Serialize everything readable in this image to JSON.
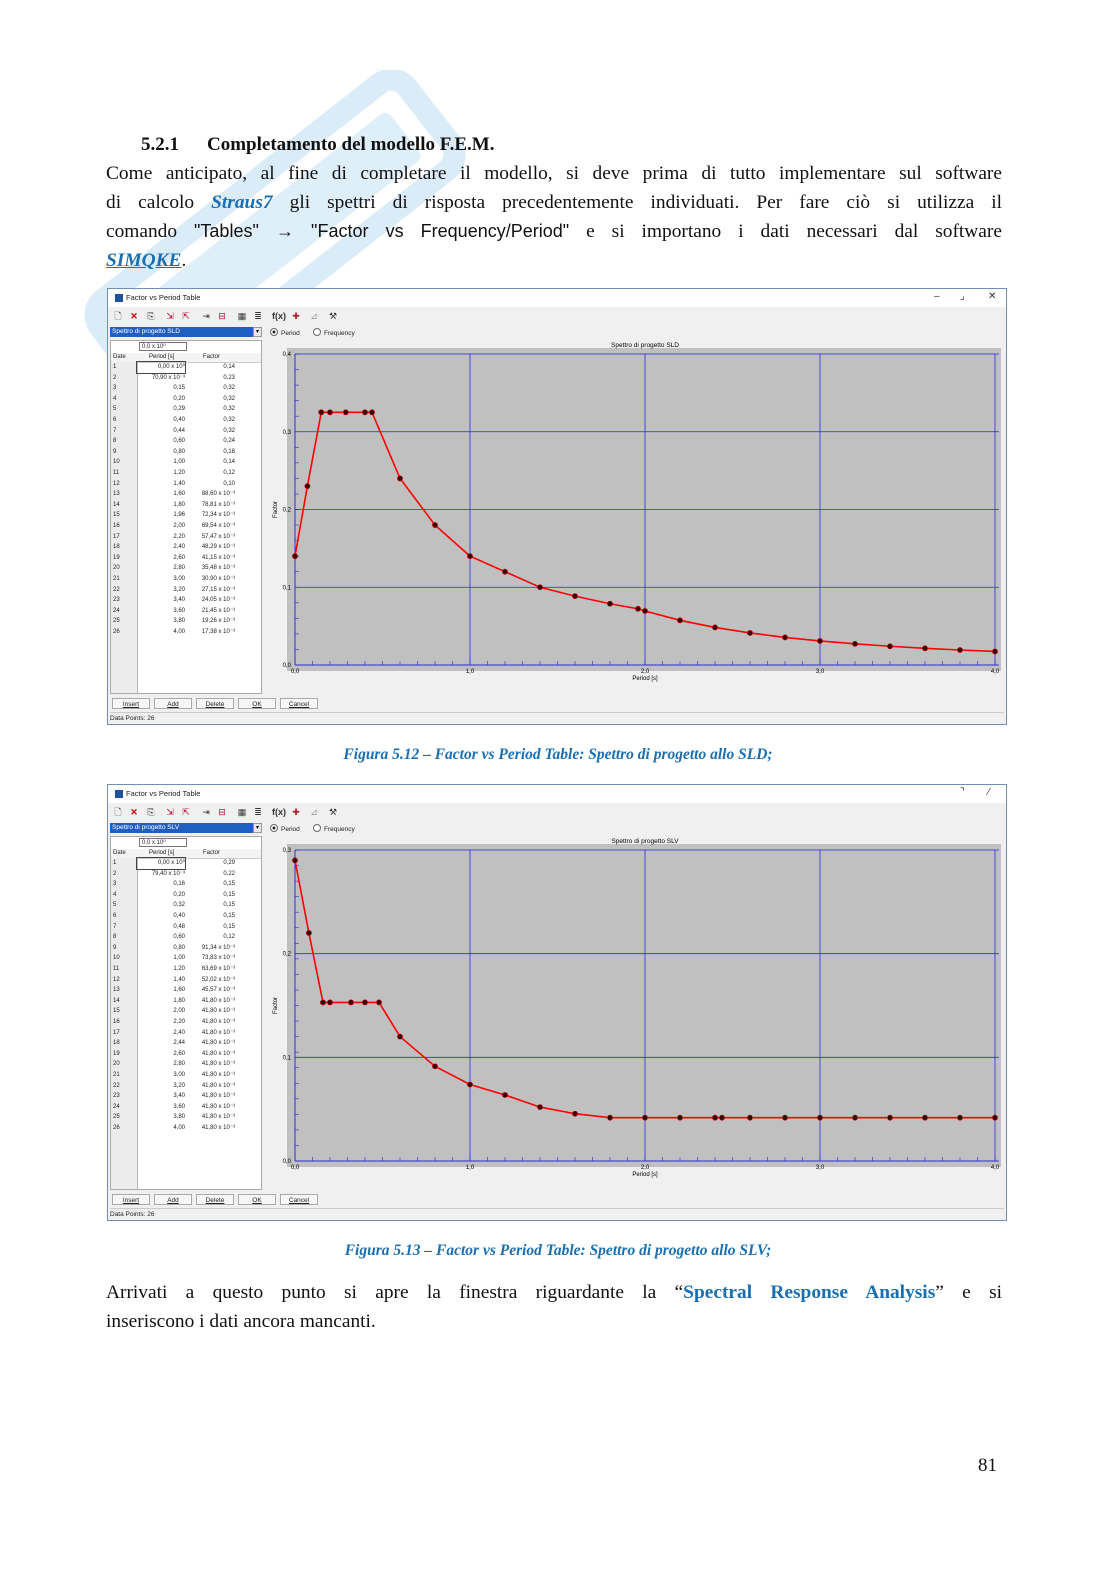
{
  "section": {
    "number": "5.2.1",
    "title": "Completamento del modello F.E.M."
  },
  "intro": {
    "l1": "Come anticipato, al fine di completare il modello, si deve prima di tutto implementare sul software",
    "l2a": "di calcolo ",
    "l2b": "Straus7",
    "l2c": " gli spettri di risposta precedentemente individuati. Per fare ciò si utilizza il",
    "l3a": "comando ",
    "l3b": "\"Tables\" → \"Factor vs Frequency/Period\"",
    "l3c": " e si importano i dati necessari dal software",
    "l4a": "SIMQKE",
    "l4b": "."
  },
  "outro": {
    "l1a": "Arrivati a questo punto si apre la finestra riguardante la “",
    "l1b": "Spectral Response Analysis",
    "l1c": "” e si",
    "l2": "inseriscono i dati ancora mancanti."
  },
  "page_number": "81",
  "windows": [
    {
      "title": "Factor vs Period Table",
      "selected_spectrum": "Spettro di progetto SLD",
      "radio_period": "Period",
      "radio_frequency": "Frequency",
      "input_value": "0,0 x 10⁰",
      "col_date": "Date",
      "col_period": "Period [s]",
      "col_factor": "Factor",
      "rows": [
        [
          "1",
          "0,00 x 10⁰",
          "0,14"
        ],
        [
          "2",
          "70,90 x 10⁻³",
          "0,23"
        ],
        [
          "3",
          "0,15",
          "0,32"
        ],
        [
          "4",
          "0,20",
          "0,32"
        ],
        [
          "5",
          "0,29",
          "0,32"
        ],
        [
          "6",
          "0,40",
          "0,32"
        ],
        [
          "7",
          "0,44",
          "0,32"
        ],
        [
          "8",
          "0,60",
          "0,24"
        ],
        [
          "9",
          "0,80",
          "0,18"
        ],
        [
          "10",
          "1,00",
          "0,14"
        ],
        [
          "11",
          "1,20",
          "0,12"
        ],
        [
          "12",
          "1,40",
          "0,10"
        ],
        [
          "13",
          "1,60",
          "88,60 x 10⁻³"
        ],
        [
          "14",
          "1,80",
          "78,81 x 10⁻³"
        ],
        [
          "15",
          "1,96",
          "72,34 x 10⁻³"
        ],
        [
          "16",
          "2,00",
          "69,54 x 10⁻³"
        ],
        [
          "17",
          "2,20",
          "57,47 x 10⁻³"
        ],
        [
          "18",
          "2,40",
          "48,29 x 10⁻³"
        ],
        [
          "19",
          "2,60",
          "41,15 x 10⁻³"
        ],
        [
          "20",
          "2,80",
          "35,48 x 10⁻³"
        ],
        [
          "21",
          "3,00",
          "30,90 x 10⁻³"
        ],
        [
          "22",
          "3,20",
          "27,15 x 10⁻³"
        ],
        [
          "23",
          "3,40",
          "24,05 x 10⁻³"
        ],
        [
          "24",
          "3,60",
          "21,45 x 10⁻³"
        ],
        [
          "25",
          "3,80",
          "19,26 x 10⁻³"
        ],
        [
          "26",
          "4,00",
          "17,38 x 10⁻³"
        ]
      ],
      "buttons": {
        "insert": "Insert",
        "add": "Add",
        "delete": "Delete",
        "ok": "OK",
        "cancel": "Cancel"
      },
      "status": "Data Points: 26"
    },
    {
      "title": "Factor vs Period Table",
      "selected_spectrum": "Spettro di progetto SLV",
      "radio_period": "Period",
      "radio_frequency": "Frequency",
      "input_value": "0,0 x 10⁰",
      "col_date": "Date",
      "col_period": "Period [s]",
      "col_factor": "Factor",
      "rows": [
        [
          "1",
          "0,00 x 10⁰",
          "0,29"
        ],
        [
          "2",
          "79,40 x 10⁻³",
          "0,22"
        ],
        [
          "3",
          "0,16",
          "0,15"
        ],
        [
          "4",
          "0,20",
          "0,15"
        ],
        [
          "5",
          "0,32",
          "0,15"
        ],
        [
          "6",
          "0,40",
          "0,15"
        ],
        [
          "7",
          "0,48",
          "0,15"
        ],
        [
          "8",
          "0,60",
          "0,12"
        ],
        [
          "9",
          "0,80",
          "91,34 x 10⁻³"
        ],
        [
          "10",
          "1,00",
          "73,83 x 10⁻³"
        ],
        [
          "11",
          "1,20",
          "63,69 x 10⁻³"
        ],
        [
          "12",
          "1,40",
          "52,02 x 10⁻³"
        ],
        [
          "13",
          "1,60",
          "45,57 x 10⁻³"
        ],
        [
          "14",
          "1,80",
          "41,80 x 10⁻³"
        ],
        [
          "15",
          "2,00",
          "41,80 x 10⁻³"
        ],
        [
          "16",
          "2,20",
          "41,80 x 10⁻³"
        ],
        [
          "17",
          "2,40",
          "41,80 x 10⁻³"
        ],
        [
          "18",
          "2,44",
          "41,80 x 10⁻³"
        ],
        [
          "19",
          "2,60",
          "41,80 x 10⁻³"
        ],
        [
          "20",
          "2,80",
          "41,80 x 10⁻³"
        ],
        [
          "21",
          "3,00",
          "41,80 x 10⁻³"
        ],
        [
          "22",
          "3,20",
          "41,80 x 10⁻³"
        ],
        [
          "23",
          "3,40",
          "41,80 x 10⁻³"
        ],
        [
          "24",
          "3,60",
          "41,80 x 10⁻³"
        ],
        [
          "25",
          "3,80",
          "41,80 x 10⁻³"
        ],
        [
          "26",
          "4,00",
          "41,80 x 10⁻³"
        ]
      ],
      "buttons": {
        "insert": "Insert",
        "add": "Add",
        "delete": "Delete",
        "ok": "OK",
        "cancel": "Cancel"
      },
      "status": "Data Points: 26"
    }
  ],
  "captions": [
    "Figura 5.12 – Factor vs Period Table: Spettro di progetto allo SLD;",
    "Figura 5.13 – Factor vs Period Table: Spettro di progetto allo SLV;"
  ],
  "chart_data": [
    {
      "type": "line",
      "title": "Spettro di progetto SLD",
      "xlabel": "Period [s]",
      "ylabel": "Factor",
      "xlim": [
        0,
        4
      ],
      "ylim": [
        0,
        0.4
      ],
      "xticks": [
        "0,0",
        "1,0",
        "2,0",
        "3,0",
        "4,0"
      ],
      "yticks": [
        "0,0",
        "0,1",
        "0,2",
        "0,3",
        "0,4"
      ],
      "grid": true,
      "line_color": "#ff0000",
      "x": [
        0,
        0.0709,
        0.15,
        0.2,
        0.29,
        0.4,
        0.44,
        0.6,
        0.8,
        1.0,
        1.2,
        1.4,
        1.6,
        1.8,
        1.96,
        2.0,
        2.2,
        2.4,
        2.6,
        2.8,
        3.0,
        3.2,
        3.4,
        3.6,
        3.8,
        4.0
      ],
      "y": [
        0.14,
        0.23,
        0.325,
        0.325,
        0.325,
        0.325,
        0.325,
        0.24,
        0.18,
        0.14,
        0.12,
        0.1,
        0.0886,
        0.0788,
        0.0723,
        0.0695,
        0.0575,
        0.0483,
        0.0412,
        0.0355,
        0.0309,
        0.0272,
        0.0241,
        0.0215,
        0.0193,
        0.0174
      ]
    },
    {
      "type": "line",
      "title": "Spettro di progetto SLV",
      "xlabel": "Period [s]",
      "ylabel": "Factor",
      "xlim": [
        0,
        4
      ],
      "ylim": [
        0,
        0.3
      ],
      "xticks": [
        "0,0",
        "1,0",
        "2,0",
        "3,0",
        "4,0"
      ],
      "yticks": [
        "0,0",
        "0,1",
        "0,2",
        "0,3"
      ],
      "grid": true,
      "line_color": "#ff0000",
      "x": [
        0,
        0.0794,
        0.16,
        0.2,
        0.32,
        0.4,
        0.48,
        0.6,
        0.8,
        1.0,
        1.2,
        1.4,
        1.6,
        1.8,
        2.0,
        2.2,
        2.4,
        2.44,
        2.6,
        2.8,
        3.0,
        3.2,
        3.4,
        3.6,
        3.8,
        4.0
      ],
      "y": [
        0.29,
        0.22,
        0.153,
        0.153,
        0.153,
        0.153,
        0.153,
        0.12,
        0.0913,
        0.0738,
        0.0637,
        0.052,
        0.0456,
        0.0418,
        0.0418,
        0.0418,
        0.0418,
        0.0418,
        0.0418,
        0.0418,
        0.0418,
        0.0418,
        0.0418,
        0.0418,
        0.0418,
        0.0418
      ]
    }
  ],
  "colors": {
    "accent": "#1a6fb0",
    "selection": "#1f5fbf",
    "plot_bg": "#c0c0c0",
    "grid": "#2b2bd6",
    "series": "#ff0000"
  }
}
